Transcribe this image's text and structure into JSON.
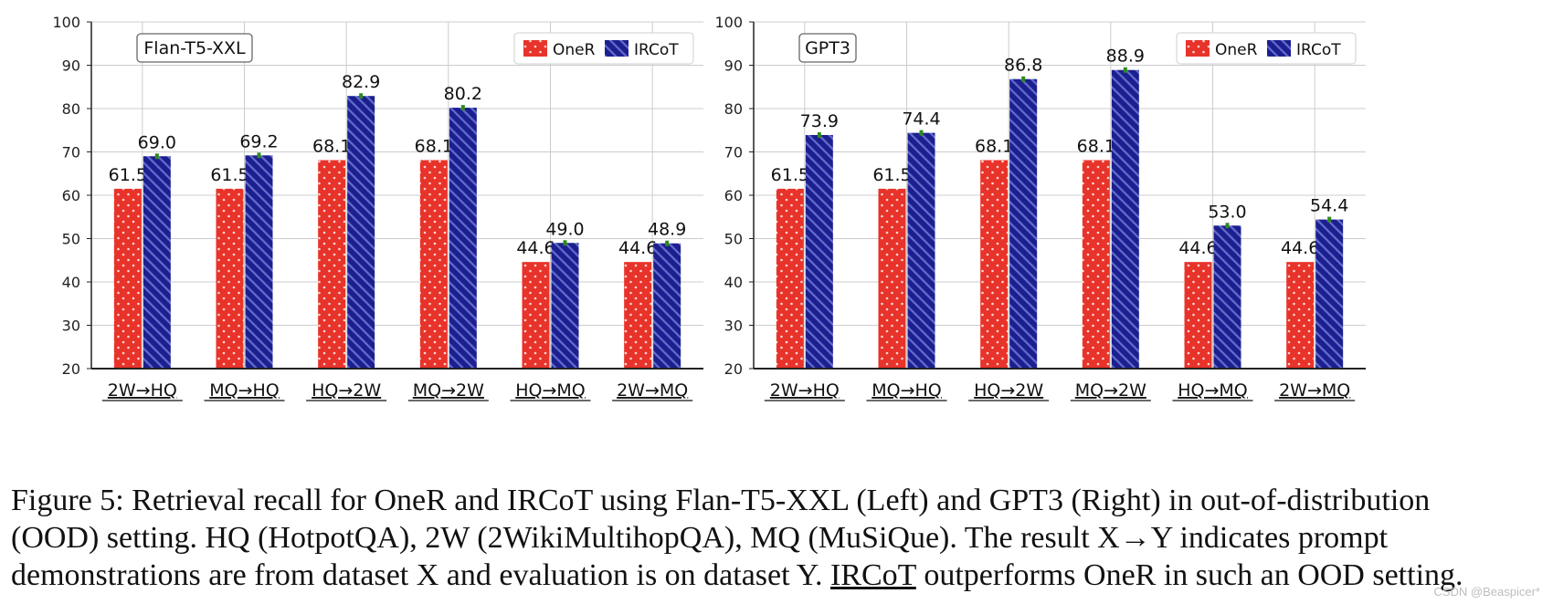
{
  "chart_data": [
    {
      "type": "bar",
      "title": "Flan-T5-XXL",
      "categories": [
        "2W→HQ",
        "MQ→HQ",
        "HQ→2W",
        "MQ→2W",
        "HQ→MQ",
        "2W→MQ"
      ],
      "series": [
        {
          "name": "OneR",
          "values": [
            61.5,
            61.5,
            68.1,
            68.1,
            44.6,
            44.6
          ]
        },
        {
          "name": "IRCoT",
          "values": [
            69.0,
            69.2,
            82.9,
            80.2,
            49.0,
            48.9
          ]
        }
      ],
      "value_labels": {
        "OneR": [
          "61.5",
          "61.5",
          "68.1",
          "68.1",
          "44.6",
          "44.6"
        ],
        "IRCoT": [
          "69.0",
          "69.2",
          "82.9",
          "80.2",
          "49.0",
          "48.9"
        ]
      },
      "ylim": [
        20,
        100
      ],
      "yticks": [
        20,
        30,
        40,
        50,
        60,
        70,
        80,
        90,
        100
      ],
      "xlabel": "",
      "ylabel": "",
      "grid": true,
      "legend": "top-right"
    },
    {
      "type": "bar",
      "title": "GPT3",
      "categories": [
        "2W→HQ",
        "MQ→HQ",
        "HQ→2W",
        "MQ→2W",
        "HQ→MQ",
        "2W→MQ"
      ],
      "series": [
        {
          "name": "OneR",
          "values": [
            61.5,
            61.5,
            68.1,
            68.1,
            44.6,
            44.6
          ]
        },
        {
          "name": "IRCoT",
          "values": [
            73.9,
            74.4,
            86.8,
            88.9,
            53.0,
            54.4
          ]
        }
      ],
      "value_labels": {
        "OneR": [
          "61.5",
          "61.5",
          "68.1",
          "68.1",
          "44.6",
          "44.6"
        ],
        "IRCoT": [
          "73.9",
          "74.4",
          "86.8",
          "88.9",
          "53.0",
          "54.4"
        ]
      },
      "ylim": [
        20,
        100
      ],
      "yticks": [
        20,
        30,
        40,
        50,
        60,
        70,
        80,
        90,
        100
      ],
      "xlabel": "",
      "ylabel": "",
      "grid": true,
      "legend": "top-right"
    }
  ],
  "colors": {
    "oner": "#e8332a",
    "ircot": "#1c1f8f",
    "error_bar": "#2f8a1f",
    "grid": "#cccccc",
    "axis": "#222222"
  },
  "caption": {
    "line1": "Figure 5: Retrieval recall for OneR and IRCoT using Flan-T5-XXL (Left) and GPT3 (Right) in out-of-distribution",
    "line2": "(OOD) setting. HQ (HotpotQA), 2W (2WikiMultihopQA), MQ (MuSiQue). The result X→Y indicates prompt",
    "line3_start": "demonstrations are from dataset X and evaluation is on dataset Y. ",
    "line3_underlined": "IRCoT",
    "line3_end": " outperforms OneR in such an OOD setting."
  },
  "watermark": "CSDN @Beaspicer*"
}
